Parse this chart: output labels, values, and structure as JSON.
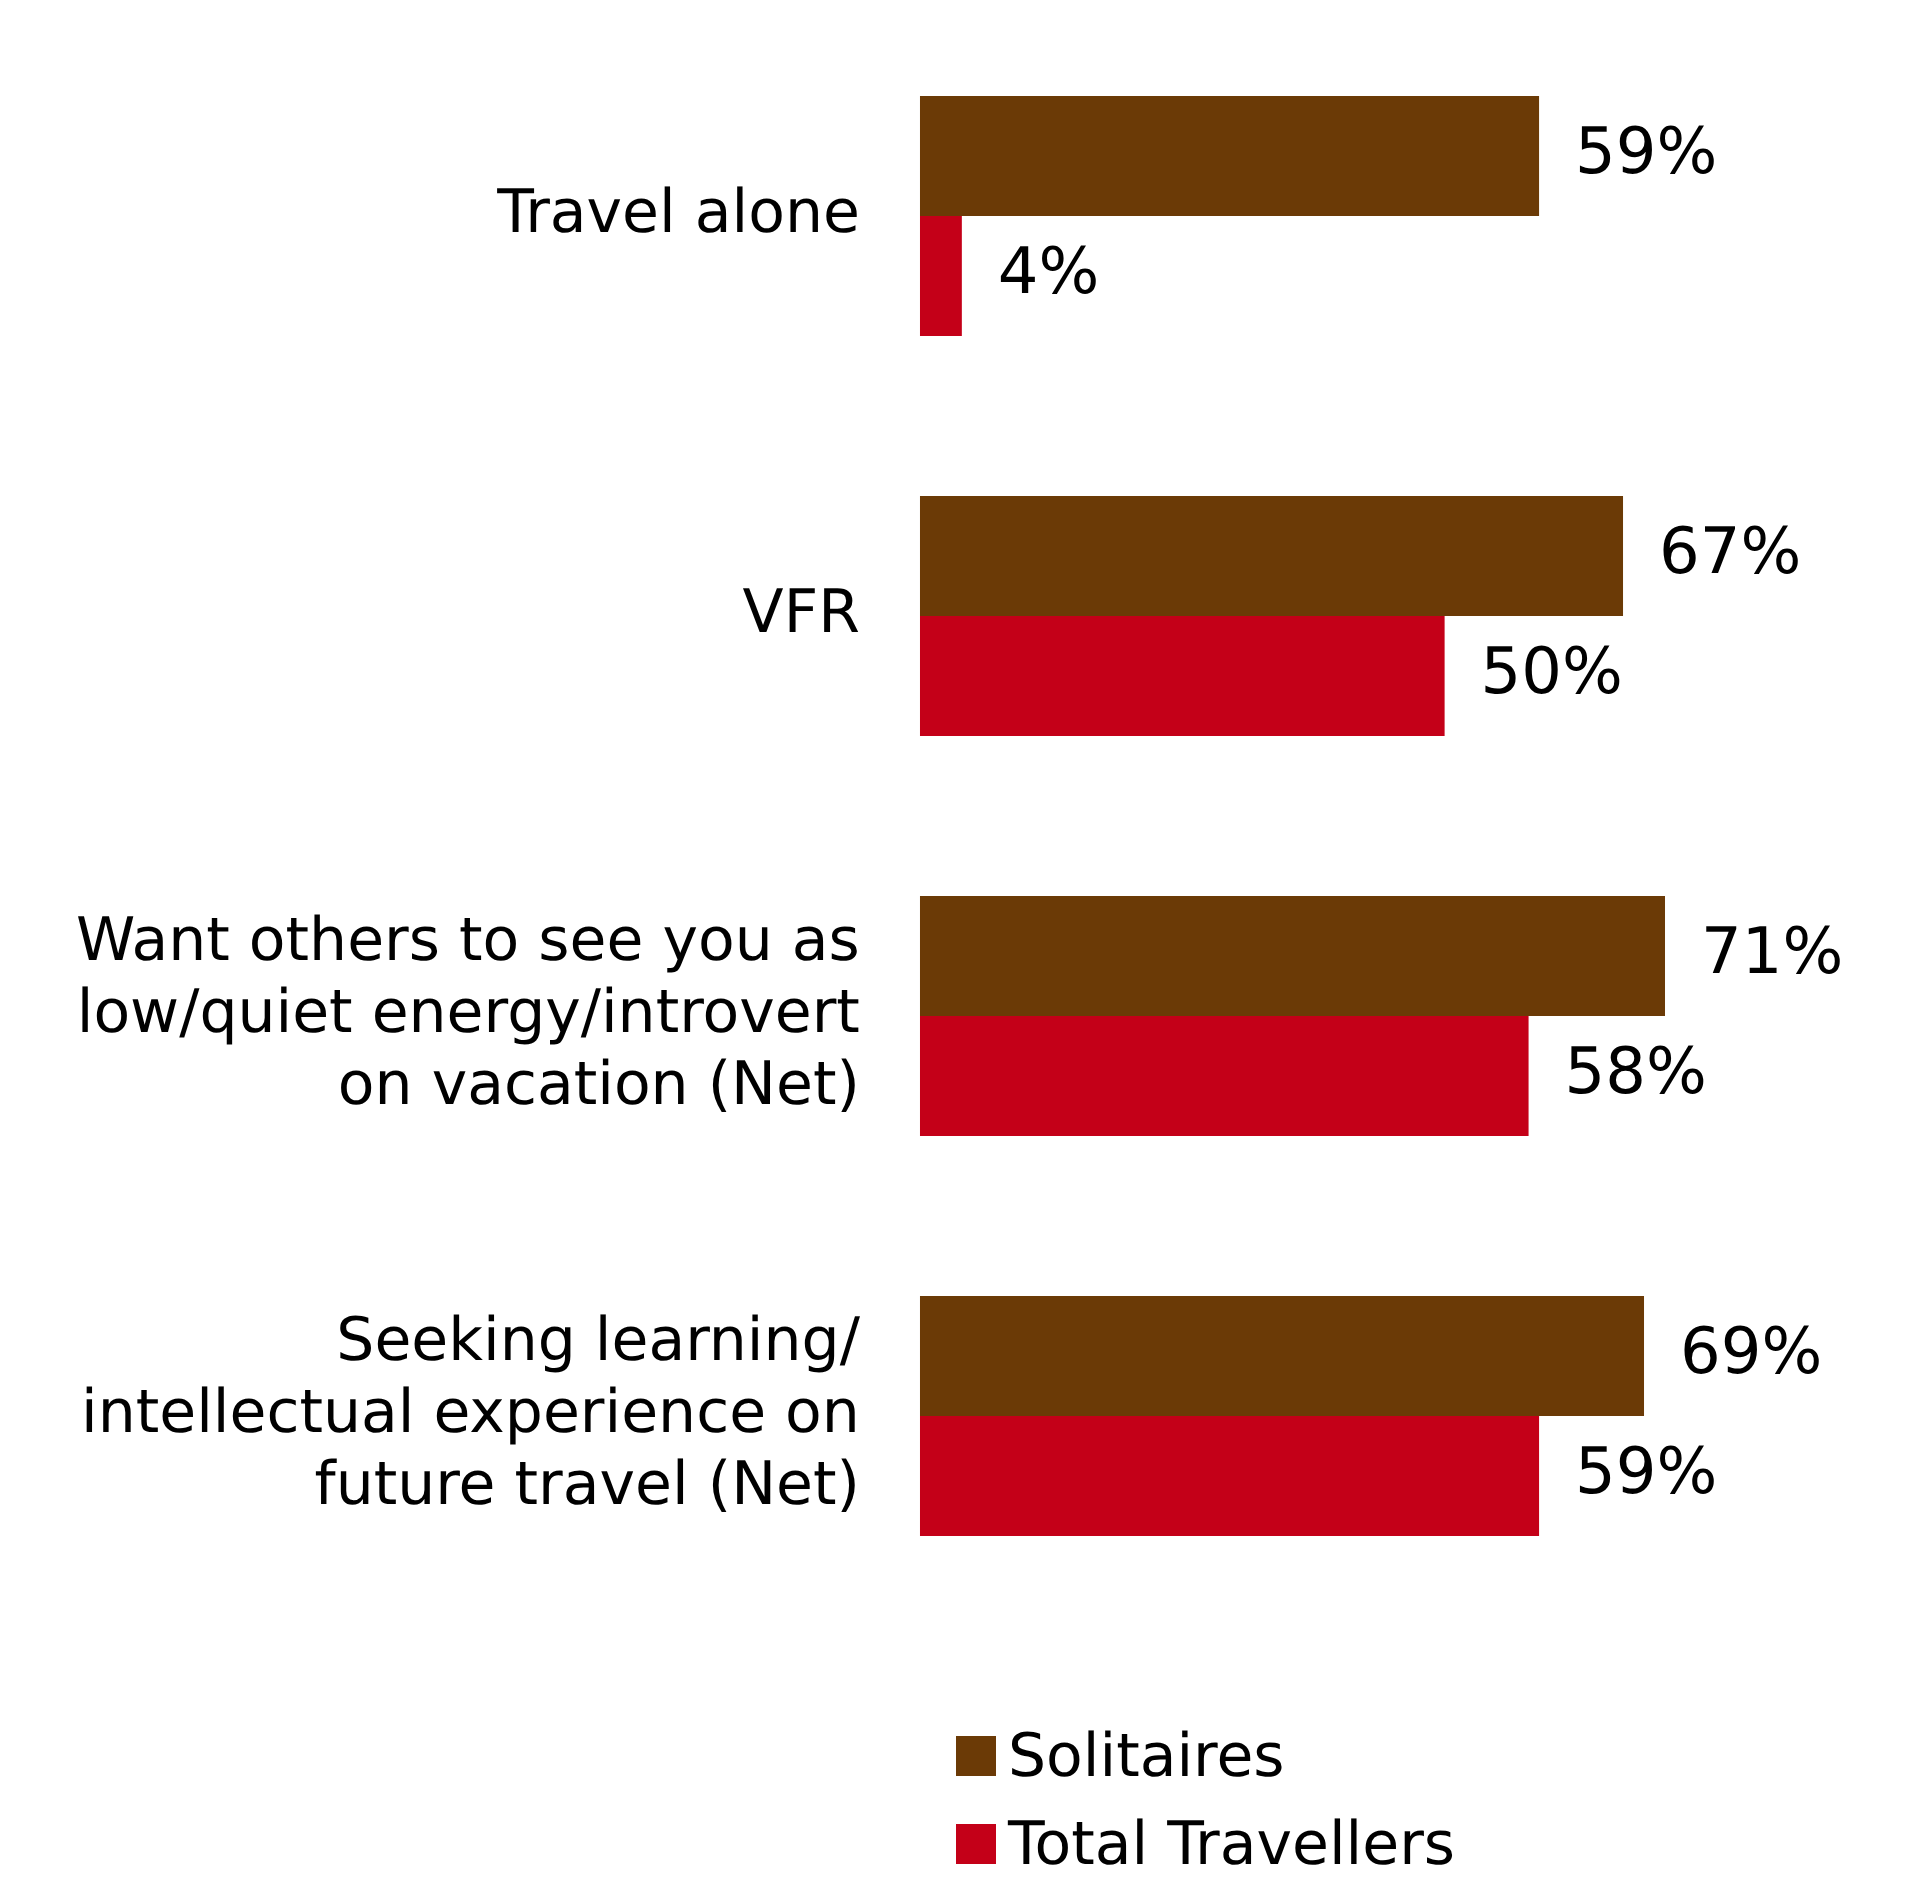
{
  "chart_data": {
    "type": "bar",
    "orientation": "horizontal",
    "categories": [
      "Travel alone",
      "VFR",
      "Want others to see you as low/quiet energy/introvert on vacation (Net)",
      "Seeking learning/ intellectual experience on future travel (Net)"
    ],
    "series": [
      {
        "name": "Solitaires",
        "color": "#6b3a06",
        "values": [
          59,
          67,
          71,
          69
        ],
        "value_labels": [
          "59%",
          "67%",
          "71%",
          "69%"
        ]
      },
      {
        "name": "Total Travellers",
        "color": "#c40018",
        "values": [
          4,
          50,
          58,
          59
        ],
        "value_labels": [
          "4%",
          "50%",
          "58%",
          "59%"
        ]
      }
    ],
    "legend": "bottom"
  }
}
